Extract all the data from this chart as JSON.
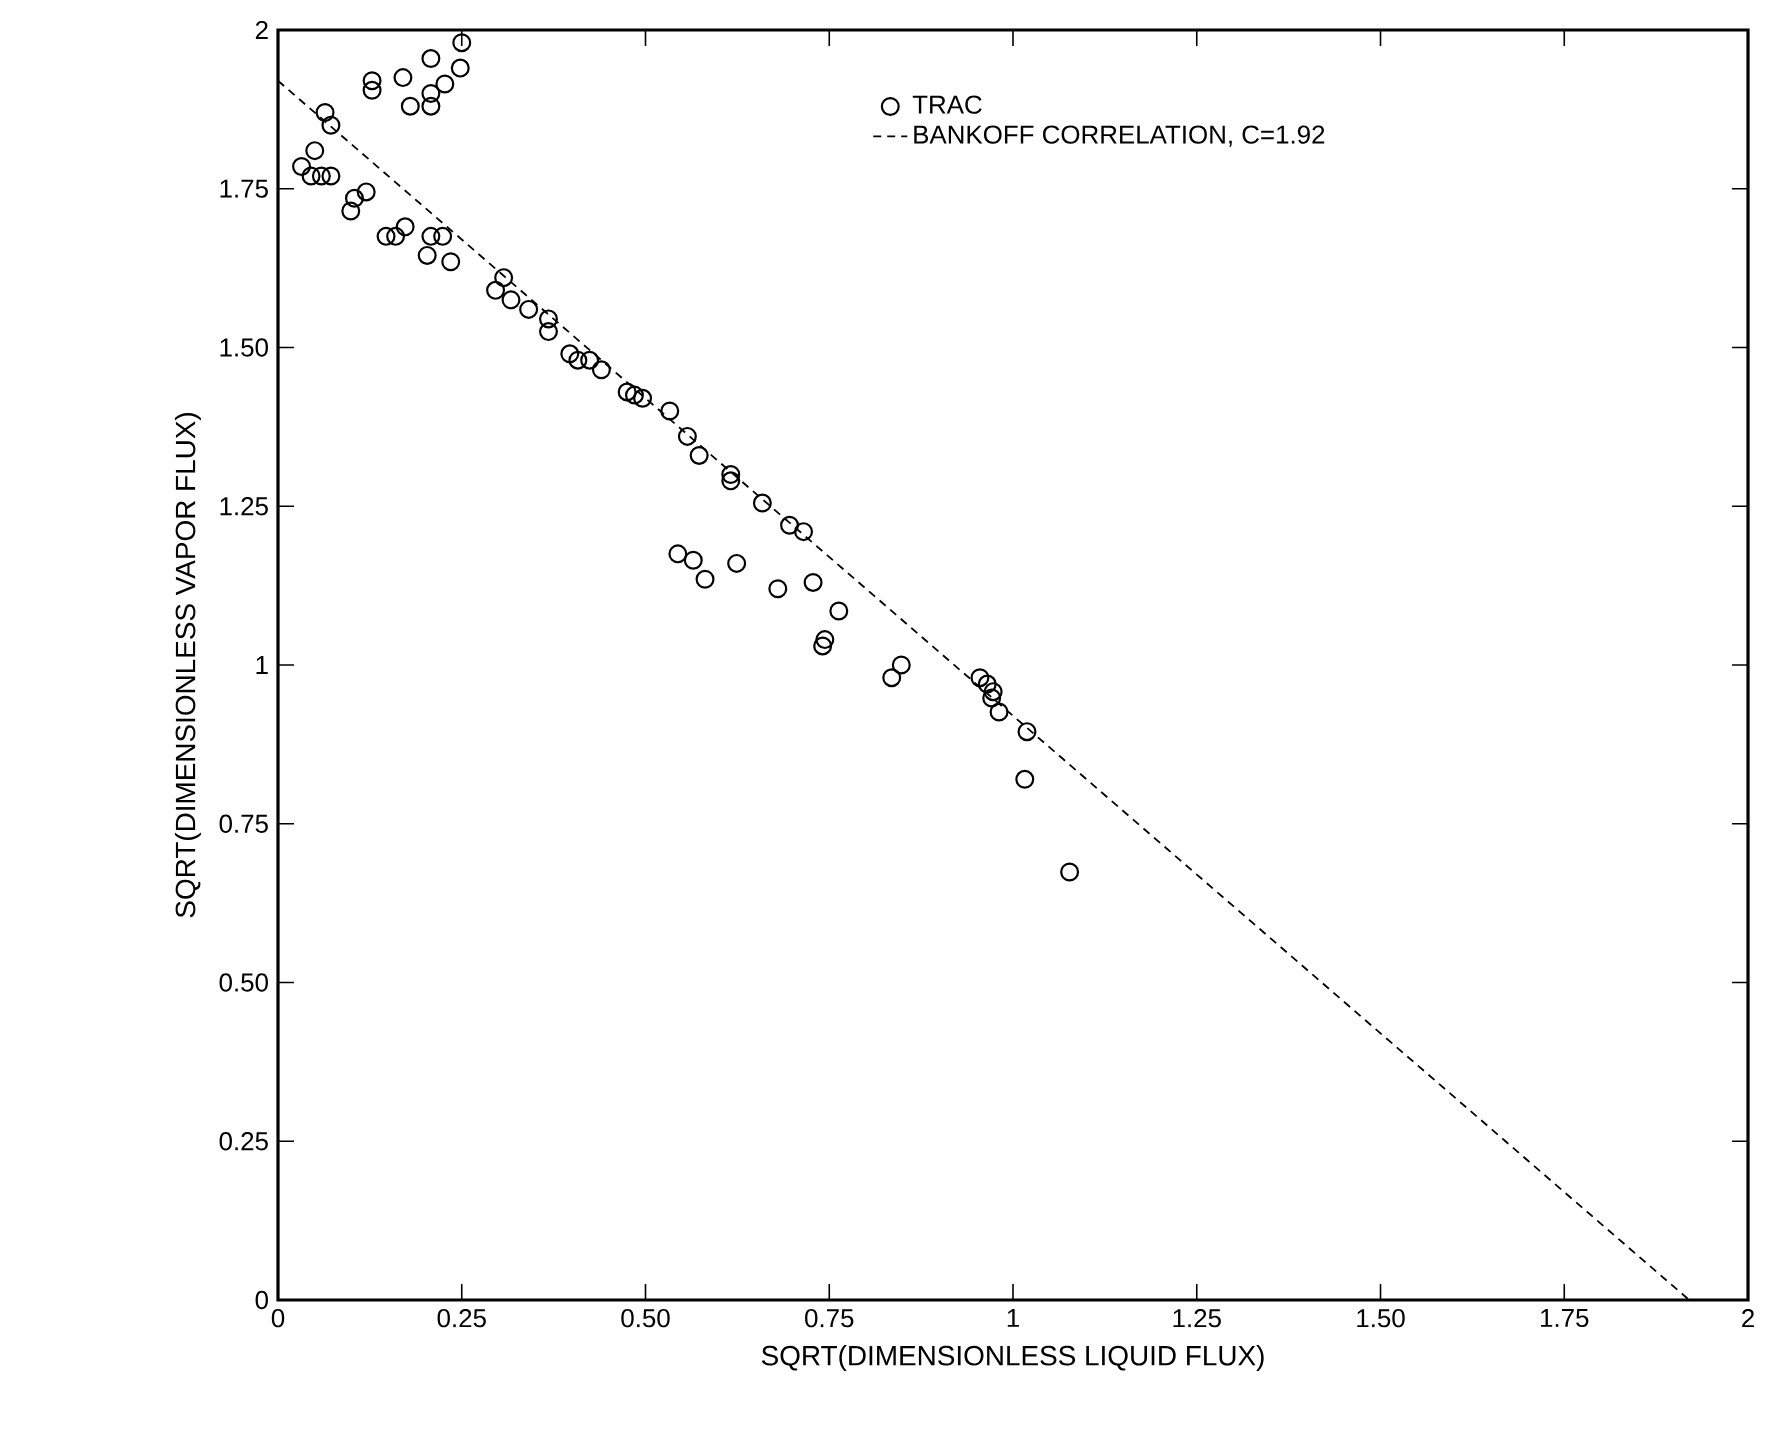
{
  "chart_data": {
    "type": "scatter",
    "xlabel": "SQRT(DIMENSIONLESS LIQUID FLUX)",
    "ylabel": "SQRT(DIMENSIONLESS VAPOR FLUX)",
    "xlim": [
      0,
      2
    ],
    "ylim": [
      0,
      2
    ],
    "xticks": [
      0,
      0.25,
      {
        "value": 0.5,
        "label": "0.50"
      },
      0.75,
      1,
      1.25,
      {
        "value": 1.5,
        "label": "1.50"
      },
      1.75,
      2
    ],
    "yticks": [
      0,
      0.25,
      {
        "value": 0.5,
        "label": "0.50"
      },
      0.75,
      1,
      1.25,
      {
        "value": 1.5,
        "label": "1.50"
      },
      1.75,
      2
    ],
    "grid": false,
    "legend": "top right",
    "series": [
      {
        "name": "TRAC",
        "marker": "circle",
        "color": "#000000",
        "x": [
          0.25,
          0.128,
          0.128,
          0.17,
          0.18,
          0.208,
          0.208,
          0.208,
          0.227,
          0.248,
          0.064,
          0.072,
          0.032,
          0.05,
          0.045,
          0.059,
          0.072,
          0.099,
          0.104,
          0.12,
          0.147,
          0.16,
          0.173,
          0.203,
          0.208,
          0.224,
          0.235,
          0.307,
          0.296,
          0.317,
          0.341,
          0.368,
          0.368,
          0.397,
          0.408,
          0.424,
          0.44,
          0.475,
          0.485,
          0.496,
          0.533,
          0.557,
          0.573,
          0.616,
          0.616,
          0.659,
          0.696,
          0.715,
          0.544,
          0.565,
          0.581,
          0.624,
          0.68,
          0.728,
          0.763,
          0.744,
          0.741,
          0.848,
          0.835,
          0.955,
          0.965,
          0.973,
          0.971,
          0.981,
          1.019,
          1.016,
          1.077
        ],
        "values": [
          1.98,
          1.92,
          1.905,
          1.925,
          1.88,
          1.955,
          1.9,
          1.88,
          1.915,
          1.94,
          1.87,
          1.85,
          1.785,
          1.81,
          1.77,
          1.77,
          1.77,
          1.715,
          1.735,
          1.745,
          1.675,
          1.675,
          1.69,
          1.645,
          1.675,
          1.675,
          1.635,
          1.61,
          1.59,
          1.575,
          1.56,
          1.545,
          1.525,
          1.49,
          1.48,
          1.48,
          1.465,
          1.43,
          1.425,
          1.42,
          1.4,
          1.36,
          1.33,
          1.3,
          1.29,
          1.255,
          1.22,
          1.21,
          1.175,
          1.165,
          1.135,
          1.16,
          1.12,
          1.13,
          1.085,
          1.04,
          1.03,
          1.0,
          0.98,
          0.98,
          0.97,
          0.958,
          0.948,
          0.926,
          0.895,
          0.82,
          0.674
        ]
      },
      {
        "name": "BANKOFF CORRELATION, C=1.92",
        "type": "line",
        "line_style": "dashed",
        "marker": "none",
        "color": "#000000",
        "x": [
          0,
          1.92
        ],
        "values": [
          1.92,
          0
        ]
      }
    ]
  }
}
